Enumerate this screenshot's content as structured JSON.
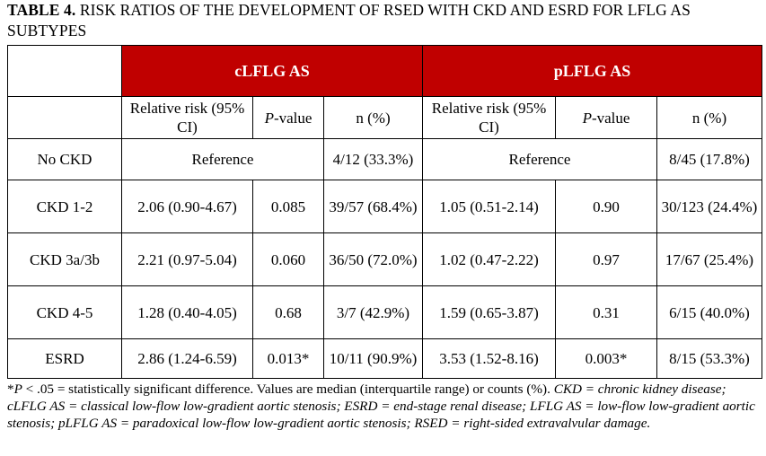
{
  "title": {
    "bold": "TABLE 4.",
    "text": " RISK RATIOS OF THE DEVELOPMENT OF RSED WITH CKD AND ESRD FOR LFLG AS SUBTYPES"
  },
  "table": {
    "group_headers": [
      "cLFLG AS",
      "pLFLG AS"
    ],
    "sub_headers": {
      "rr": "Relative risk (95% CI)",
      "p_italic": "P",
      "p_rest": "-value",
      "n": "n (%)"
    },
    "rows": [
      {
        "label": "No CKD",
        "c_reference": "Reference",
        "c_n": "4/12 (33.3%)",
        "p_reference": "Reference",
        "p_n": "8/45 (17.8%)"
      },
      {
        "label": "CKD 1-2",
        "c_rr": "2.06 (0.90-4.67)",
        "c_p": "0.085",
        "c_n": "39/57 (68.4%)",
        "p_rr": "1.05 (0.51-2.14)",
        "p_p": "0.90",
        "p_n": "30/123 (24.4%)"
      },
      {
        "label": "CKD 3a/3b",
        "c_rr": "2.21 (0.97-5.04)",
        "c_p": "0.060",
        "c_n": "36/50 (72.0%)",
        "p_rr": "1.02 (0.47-2.22)",
        "p_p": "0.97",
        "p_n": "17/67 (25.4%)"
      },
      {
        "label": "CKD 4-5",
        "c_rr": "1.28 (0.40-4.05)",
        "c_p": "0.68",
        "c_n": "3/7 (42.9%)",
        "p_rr": "1.59 (0.65-3.87)",
        "p_p": "0.31",
        "p_n": "6/15 (40.0%)"
      },
      {
        "label": "ESRD",
        "c_rr": "2.86 (1.24-6.59)",
        "c_p": "0.013*",
        "c_n": "10/11 (90.9%)",
        "p_rr": "3.53 (1.52-8.16)",
        "p_p": "0.003*",
        "p_n": "8/15 (53.3%)"
      }
    ]
  },
  "footnote": {
    "star": "*",
    "p": "P",
    "part1": " < .05 = statistically significant difference. Values are median (interquartile range) or counts (%). ",
    "abbrev": "CKD = chronic kidney disease; cLFLG AS = classical low-flow low-gradient aortic stenosis; ESRD = end-stage renal disease; LFLG AS = low-flow low-gradient aortic stenosis; pLFLG AS = paradoxical low-flow low-gradient aortic stenosis; RSED = right-sided extravalvular damage."
  },
  "colors": {
    "header_bg": "#c00000",
    "header_text": "#ffffff"
  }
}
